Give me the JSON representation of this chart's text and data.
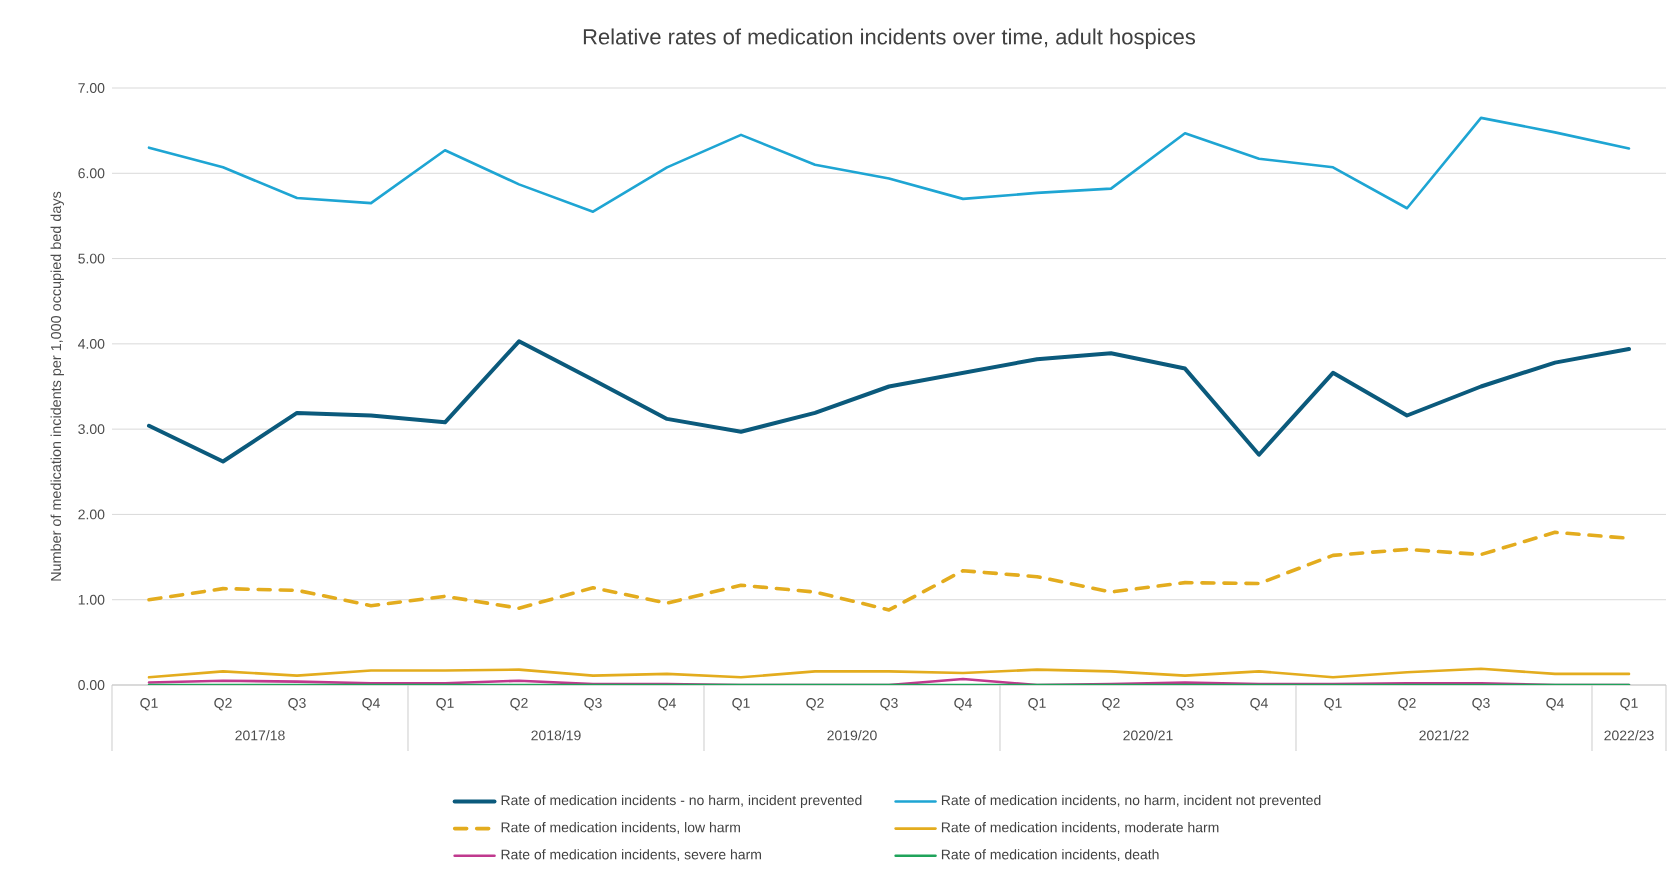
{
  "chart_data": {
    "type": "line",
    "title": "Relative rates of medication incidents over time, adult hospices",
    "ylabel": "Number of medication incidents per 1,000 occupied bed days",
    "categories": [
      "Q1",
      "Q2",
      "Q3",
      "Q4",
      "Q1",
      "Q2",
      "Q3",
      "Q4",
      "Q1",
      "Q2",
      "Q3",
      "Q4",
      "Q1",
      "Q2",
      "Q3",
      "Q4",
      "Q1",
      "Q2",
      "Q3",
      "Q4",
      "Q1"
    ],
    "annotations": [
      "2017/18",
      "2018/19",
      "2019/20",
      "2020/21",
      "2021/22",
      "2022/23"
    ],
    "ylim": [
      0,
      7
    ],
    "yticks": [
      {
        "value": 0,
        "label": "0.00"
      },
      {
        "value": 1,
        "label": "1.00"
      },
      {
        "value": 2,
        "label": "2.00"
      },
      {
        "value": 3,
        "label": "3.00"
      },
      {
        "value": 4,
        "label": "4.00"
      },
      {
        "value": 5,
        "label": "5.00"
      },
      {
        "value": 6,
        "label": "6.00"
      },
      {
        "value": 7,
        "label": "7.00"
      }
    ],
    "grid": "y",
    "legend": "bottom",
    "series": [
      {
        "name": "Rate of medication incidents - no harm, incident prevented",
        "color": "#0b5a7c",
        "values": [
          3.04,
          2.62,
          3.19,
          3.16,
          3.08,
          4.03,
          3.58,
          3.12,
          2.97,
          3.19,
          3.5,
          3.66,
          3.82,
          3.89,
          3.71,
          2.7,
          3.66,
          3.16,
          3.5,
          3.78,
          3.94
        ]
      },
      {
        "name": "Rate of medication incidents, no harm, incident not prevented",
        "color": "#1ea5d3",
        "values": [
          6.3,
          6.07,
          5.71,
          5.65,
          6.27,
          5.87,
          5.55,
          6.07,
          6.45,
          6.1,
          5.94,
          5.7,
          5.77,
          5.82,
          6.47,
          6.17,
          6.07,
          5.59,
          6.65,
          6.48,
          6.29
        ]
      },
      {
        "name": "Rate of medication incidents, low harm",
        "color": "#e3ac1e",
        "line_style": "dashed",
        "values": [
          1.0,
          1.13,
          1.11,
          0.93,
          1.04,
          0.9,
          1.14,
          0.96,
          1.17,
          1.09,
          0.88,
          1.34,
          1.27,
          1.09,
          1.2,
          1.19,
          1.52,
          1.59,
          1.53,
          1.79,
          1.72
        ]
      },
      {
        "name": "Rate of medication incidents, moderate harm",
        "color": "#e3ac1e",
        "values": [
          0.09,
          0.16,
          0.11,
          0.17,
          0.17,
          0.18,
          0.11,
          0.13,
          0.09,
          0.16,
          0.16,
          0.14,
          0.18,
          0.16,
          0.11,
          0.16,
          0.09,
          0.15,
          0.19,
          0.13,
          0.13
        ]
      },
      {
        "name": "Rate of medication incidents, severe harm",
        "color": "#c0398e",
        "values": [
          0.03,
          0.05,
          0.04,
          0.02,
          0.02,
          0.05,
          0.01,
          0.01,
          0.0,
          0.0,
          0.0,
          0.07,
          0.0,
          0.01,
          0.03,
          0.01,
          0.01,
          0.02,
          0.02,
          0.0,
          0.0
        ]
      },
      {
        "name": "Rate of medication incidents, death",
        "color": "#1fa35a",
        "values": [
          0,
          0,
          0,
          0,
          0,
          0,
          0,
          0,
          0,
          0,
          0,
          0,
          0,
          0,
          0,
          0,
          0,
          0,
          0,
          0,
          0
        ]
      }
    ]
  }
}
